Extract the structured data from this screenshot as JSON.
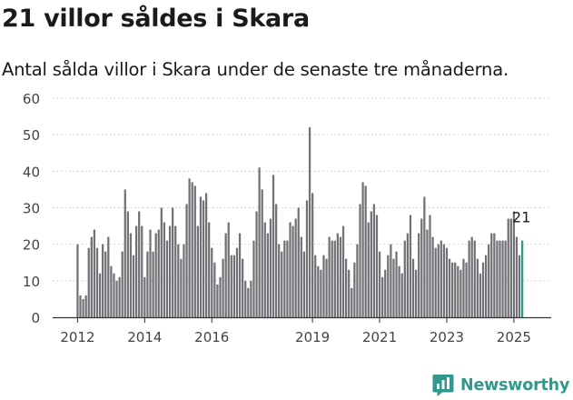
{
  "page": {
    "title": "21 villor såldes i Skara",
    "subtitle": "Antal sålda villor i Skara under de senaste tre månaderna."
  },
  "brand": {
    "name": "Newsworthy",
    "icon": "newsworthy-logo-icon",
    "color": "#2f9a8c"
  },
  "chart_data": {
    "type": "bar",
    "title": "21 villor såldes i Skara",
    "subtitle": "Antal sålda villor i Skara under de senaste tre månaderna.",
    "xlabel": "",
    "ylabel": "",
    "ylim": [
      0,
      60
    ],
    "yticks": [
      0,
      10,
      20,
      30,
      40,
      50,
      60
    ],
    "xticks": [
      "2012",
      "2014",
      "2016",
      "2019",
      "2021",
      "2023",
      "2025"
    ],
    "grid": true,
    "legend": "none",
    "bar_color": "#727176",
    "highlight_color": "#2f9a8c",
    "highlight_label": "21",
    "start": "2012-01",
    "interval": "monthly",
    "values": [
      20,
      6,
      5,
      6,
      19,
      22,
      24,
      19,
      12,
      20,
      18,
      22,
      14,
      12,
      10,
      11,
      18,
      35,
      29,
      23,
      17,
      25,
      29,
      25,
      11,
      18,
      24,
      18,
      23,
      24,
      30,
      26,
      21,
      25,
      30,
      25,
      20,
      16,
      20,
      31,
      38,
      37,
      36,
      25,
      33,
      32,
      34,
      26,
      19,
      15,
      9,
      11,
      16,
      23,
      26,
      17,
      17,
      19,
      23,
      16,
      10,
      8,
      10,
      21,
      29,
      41,
      35,
      26,
      23,
      27,
      39,
      31,
      20,
      18,
      21,
      21,
      26,
      25,
      27,
      30,
      22,
      18,
      32,
      52,
      34,
      17,
      14,
      13,
      17,
      16,
      22,
      21,
      21,
      23,
      22,
      25,
      16,
      13,
      8,
      15,
      20,
      31,
      37,
      36,
      26,
      29,
      31,
      28,
      18,
      11,
      13,
      17,
      20,
      16,
      18,
      14,
      12,
      21,
      23,
      28,
      16,
      13,
      23,
      27,
      33,
      24,
      28,
      22,
      19,
      20,
      21,
      20,
      19,
      16,
      15,
      15,
      14,
      13,
      16,
      15,
      21,
      22,
      21,
      16,
      12,
      15,
      17,
      20,
      23,
      23,
      21,
      21,
      21,
      21,
      27,
      27,
      29,
      22,
      17,
      21
    ]
  }
}
